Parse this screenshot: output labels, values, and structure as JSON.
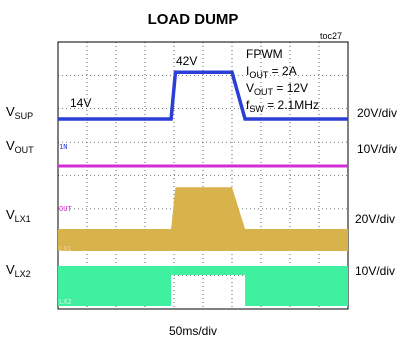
{
  "chart_data": {
    "type": "line",
    "title": "LOAD DUMP",
    "figure_id": "toc27",
    "xlabel": "50ms/div",
    "annotations": {
      "mode": "FPWM",
      "iout": {
        "main": "I",
        "sub": "OUT",
        "value": " = 2A"
      },
      "vout": {
        "main": "V",
        "sub": "OUT",
        "value": " = 12V"
      },
      "fsw": {
        "main": "f",
        "sub": "SW",
        "value": " = 2.1MHz"
      },
      "v_low": "14V",
      "v_high": "42V"
    },
    "channels": [
      {
        "id": "vsup",
        "name_main": "V",
        "name_sub": "SUP",
        "scale": "20V/div",
        "color": "#2b3fd6"
      },
      {
        "id": "vout",
        "name_main": "V",
        "name_sub": "OUT",
        "scale": "10V/div",
        "color": "#d42bd4",
        "marker": "1N"
      },
      {
        "id": "vlx1",
        "name_main": "V",
        "name_sub": "LX1",
        "scale": "20V/div",
        "color": "#d8b24a",
        "marker": "OUT"
      },
      {
        "id": "vlx2",
        "name_main": "V",
        "name_sub": "LX2",
        "scale": "10V/div",
        "color": "#3ef0a0",
        "marker": "LX1",
        "marker2": "LX2"
      }
    ],
    "vsup_waveform": {
      "x_div": [
        0,
        3.9,
        4.05,
        6.0,
        6.45,
        10
      ],
      "y_volts": [
        14,
        14,
        42,
        42,
        14,
        14
      ]
    },
    "grid": true
  }
}
